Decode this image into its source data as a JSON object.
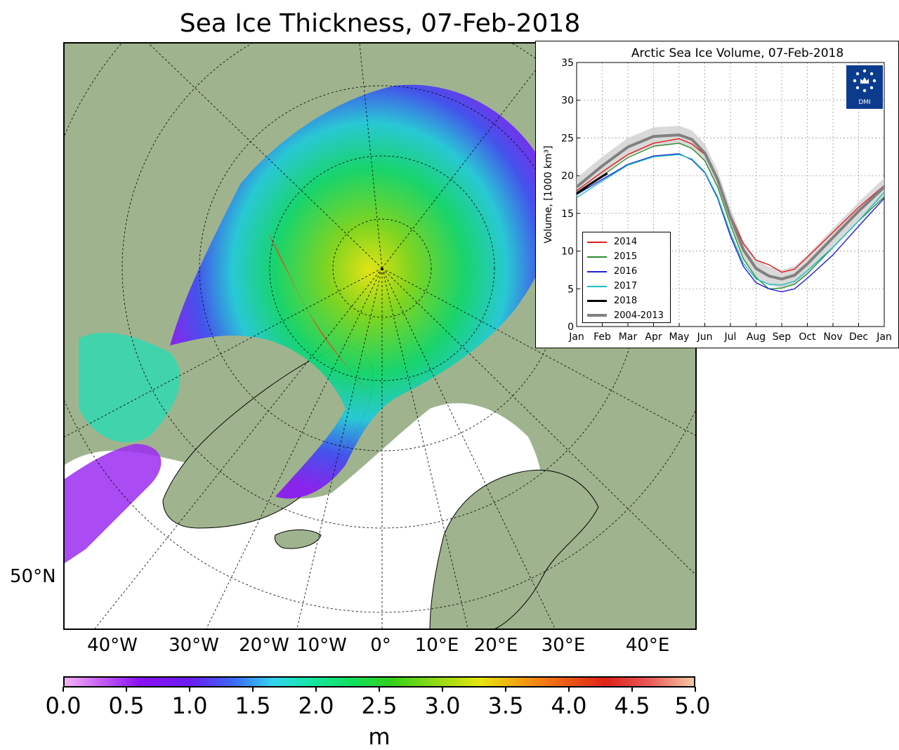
{
  "map": {
    "title": "Sea Ice Thickness, 07-Feb-2018",
    "lat_label": "50°N",
    "lon_labels": [
      "40°W",
      "30°W",
      "20°W",
      "10°W",
      "0°",
      "10°E",
      "20°E",
      "30°E",
      "40°E"
    ],
    "colorbar": {
      "ticks": [
        "0.0",
        "0.5",
        "1.0",
        "1.5",
        "2.0",
        "2.5",
        "3.0",
        "3.5",
        "4.0",
        "4.5",
        "5.0"
      ],
      "unit": "m",
      "min": 0,
      "max": 5
    },
    "colors": {
      "land": "#9fb48e",
      "ocean": "#ffffff",
      "coast": "#000000"
    }
  },
  "chart_data": {
    "type": "line",
    "title": "Arctic Sea Ice Volume, 07-Feb-2018",
    "ylabel": "Volume, [1000 km³]",
    "xlabel": "",
    "x_ticks": [
      "Jan",
      "Feb",
      "Mar",
      "Apr",
      "May",
      "Jun",
      "Jul",
      "Aug",
      "Sep",
      "Oct",
      "Nov",
      "Dec",
      "Jan"
    ],
    "y_ticks": [
      "0",
      "5",
      "10",
      "15",
      "20",
      "25",
      "30",
      "35"
    ],
    "ylim": [
      0,
      35
    ],
    "xlim": [
      0,
      12
    ],
    "grid": true,
    "legend_position": "bottom-left",
    "logo_text": "DMI",
    "series": [
      {
        "name": "2014",
        "color": "#e41a1c",
        "x": [
          0,
          1,
          2,
          3,
          4,
          4.5,
          5,
          5.5,
          6,
          6.5,
          7,
          7.5,
          8,
          8.5,
          9,
          10,
          11,
          12
        ],
        "y": [
          18.0,
          20.5,
          22.8,
          24.3,
          24.9,
          24.2,
          22.8,
          19.5,
          14.8,
          11.0,
          8.8,
          8.2,
          7.2,
          7.6,
          9.2,
          12.5,
          15.8,
          18.7
        ]
      },
      {
        "name": "2015",
        "color": "#2e8b2e",
        "x": [
          0,
          1,
          2,
          3,
          4,
          4.5,
          5,
          5.5,
          6,
          6.5,
          7,
          7.5,
          8,
          8.5,
          9,
          10,
          11,
          12
        ],
        "y": [
          17.8,
          20.0,
          22.4,
          23.9,
          24.3,
          23.6,
          22.0,
          18.5,
          13.5,
          9.0,
          6.5,
          5.0,
          5.1,
          5.6,
          7.0,
          10.5,
          14.0,
          17.2
        ]
      },
      {
        "name": "2016",
        "color": "#1f1fd2",
        "x": [
          0,
          1,
          2,
          3,
          4,
          4.5,
          5,
          5.5,
          6,
          6.5,
          7,
          7.5,
          8,
          8.5,
          9,
          10,
          11,
          12
        ],
        "y": [
          17.5,
          19.5,
          21.5,
          22.6,
          22.9,
          22.1,
          20.4,
          17.0,
          12.0,
          8.0,
          5.8,
          5.0,
          4.6,
          5.0,
          6.4,
          9.5,
          13.3,
          17.0
        ]
      },
      {
        "name": "2017",
        "color": "#17bebe",
        "x": [
          0,
          1,
          2,
          3,
          4,
          4.5,
          5,
          5.5,
          6,
          6.5,
          7,
          7.5,
          8,
          8.5,
          9,
          10,
          11,
          12
        ],
        "y": [
          17.1,
          19.3,
          21.4,
          22.5,
          22.8,
          22.2,
          20.5,
          17.2,
          12.4,
          8.4,
          6.3,
          5.6,
          5.5,
          6.0,
          7.4,
          10.5,
          14.0,
          17.8
        ]
      },
      {
        "name": "2018",
        "color": "#000000",
        "x": [
          0,
          0.5,
          1,
          1.2
        ],
        "y": [
          17.6,
          18.8,
          19.9,
          20.3
        ]
      },
      {
        "name": "2004-2013",
        "color": "#808080",
        "x": [
          0,
          1,
          2,
          3,
          4,
          4.5,
          5,
          5.5,
          6,
          6.5,
          7,
          7.5,
          8,
          8.5,
          9,
          10,
          11,
          12
        ],
        "y": [
          18.5,
          21.3,
          23.8,
          25.2,
          25.4,
          24.8,
          23.0,
          19.5,
          14.5,
          10.2,
          7.7,
          6.7,
          6.3,
          6.8,
          8.3,
          11.8,
          15.3,
          18.5
        ]
      }
    ]
  }
}
